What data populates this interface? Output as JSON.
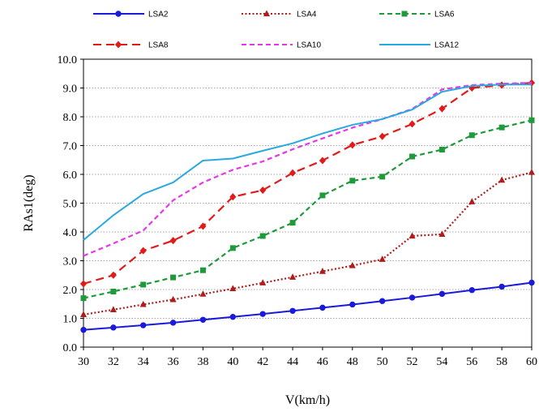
{
  "chart_data": {
    "type": "line",
    "title": "",
    "xlabel": "V(km/h)",
    "ylabel": "RAs1(deg)",
    "x": [
      30,
      32,
      34,
      36,
      38,
      40,
      42,
      44,
      46,
      48,
      50,
      52,
      54,
      56,
      58,
      60
    ],
    "xlim": [
      30,
      60
    ],
    "ylim": [
      0,
      10
    ],
    "x_ticks": [
      "30",
      "32",
      "34",
      "36",
      "38",
      "40",
      "42",
      "44",
      "46",
      "48",
      "50",
      "52",
      "54",
      "56",
      "58",
      "60"
    ],
    "y_ticks": [
      "0.0",
      "1.0",
      "2.0",
      "3.0",
      "4.0",
      "5.0",
      "6.0",
      "7.0",
      "8.0",
      "9.0",
      "10.0"
    ],
    "grid": "horizontal-dotted",
    "legend_position": "top",
    "series": [
      {
        "name": "LSA2",
        "color": "#1a1adb",
        "dash": "solid",
        "marker": "circle",
        "values": [
          0.6,
          0.68,
          0.76,
          0.85,
          0.95,
          1.05,
          1.15,
          1.26,
          1.37,
          1.48,
          1.6,
          1.72,
          1.85,
          1.98,
          2.1,
          2.24
        ]
      },
      {
        "name": "LSA4",
        "color": "#b01c1c",
        "dash": "dotted",
        "marker": "triangle",
        "values": [
          1.13,
          1.3,
          1.48,
          1.65,
          1.84,
          2.03,
          2.23,
          2.43,
          2.63,
          2.83,
          3.05,
          3.86,
          3.92,
          5.05,
          5.8,
          6.07
        ]
      },
      {
        "name": "LSA6",
        "color": "#1e9a3a",
        "dash": "dashed",
        "marker": "square",
        "values": [
          1.7,
          1.93,
          2.17,
          2.42,
          2.67,
          3.44,
          3.86,
          4.32,
          5.27,
          5.78,
          5.92,
          6.62,
          6.86,
          7.36,
          7.63,
          7.88
        ]
      },
      {
        "name": "LSA8",
        "color": "#e31a1a",
        "dash": "longdash",
        "marker": "diamond",
        "values": [
          2.2,
          2.5,
          3.35,
          3.7,
          4.2,
          5.22,
          5.45,
          6.05,
          6.48,
          7.02,
          7.32,
          7.75,
          8.28,
          9.0,
          9.1,
          9.18
        ]
      },
      {
        "name": "LSA10",
        "color": "#e637e6",
        "dash": "dashed",
        "marker": "none",
        "values": [
          3.17,
          3.6,
          4.05,
          5.1,
          5.72,
          6.16,
          6.45,
          6.87,
          7.25,
          7.62,
          7.92,
          8.27,
          8.95,
          9.1,
          9.15,
          9.18
        ]
      },
      {
        "name": "LSA12",
        "color": "#2aa8e0",
        "dash": "solid",
        "marker": "none",
        "values": [
          3.72,
          4.58,
          5.32,
          5.72,
          6.48,
          6.55,
          6.82,
          7.08,
          7.42,
          7.72,
          7.92,
          8.25,
          8.87,
          9.07,
          9.12,
          9.12
        ]
      }
    ]
  }
}
